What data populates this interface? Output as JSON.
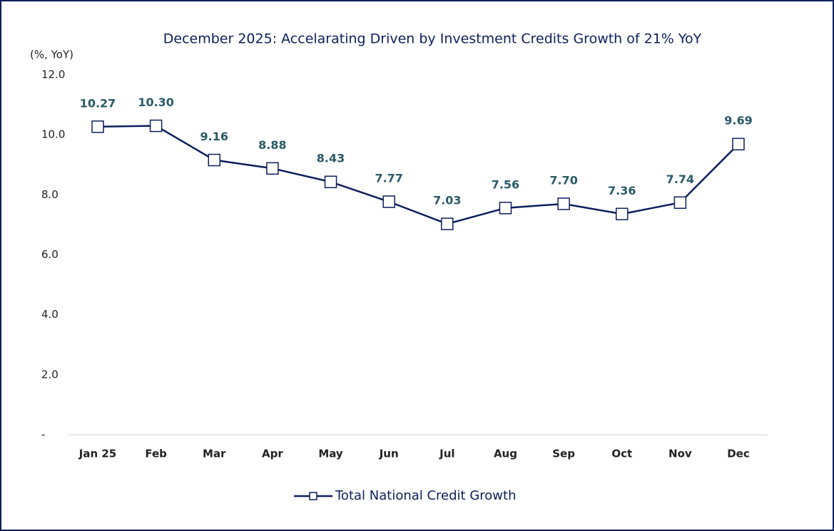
{
  "chart_data": {
    "type": "line",
    "title": "December 2025: Accelarating Driven by Investment Credits Growth of 21% YoY",
    "y_label": "(%, YoY)",
    "categories": [
      "Jan 25",
      "Feb",
      "Mar",
      "Apr",
      "May",
      "Jun",
      "Jul",
      "Aug",
      "Sep",
      "Oct",
      "Nov",
      "Dec"
    ],
    "series": [
      {
        "name": "Total National Credit Growth",
        "color": "#0d1f5c",
        "values": [
          10.27,
          10.3,
          9.16,
          8.88,
          8.43,
          7.77,
          7.03,
          7.56,
          7.7,
          7.36,
          7.74,
          9.69
        ],
        "value_labels": [
          "10.27",
          "10.30",
          "9.16",
          "8.88",
          "8.43",
          "7.77",
          "7.03",
          "7.56",
          "7.70",
          "7.36",
          "7.74",
          "9.69"
        ]
      }
    ],
    "ylim": [
      0,
      12
    ],
    "yticks": [
      {
        "value": 0,
        "label": "-"
      },
      {
        "value": 2,
        "label": "2.0"
      },
      {
        "value": 4,
        "label": "4.0"
      },
      {
        "value": 6,
        "label": "6.0"
      },
      {
        "value": 8,
        "label": "8.0"
      },
      {
        "value": 10,
        "label": "10.0"
      },
      {
        "value": 12,
        "label": "12.0"
      }
    ],
    "grid": false,
    "legend": "bottom"
  }
}
